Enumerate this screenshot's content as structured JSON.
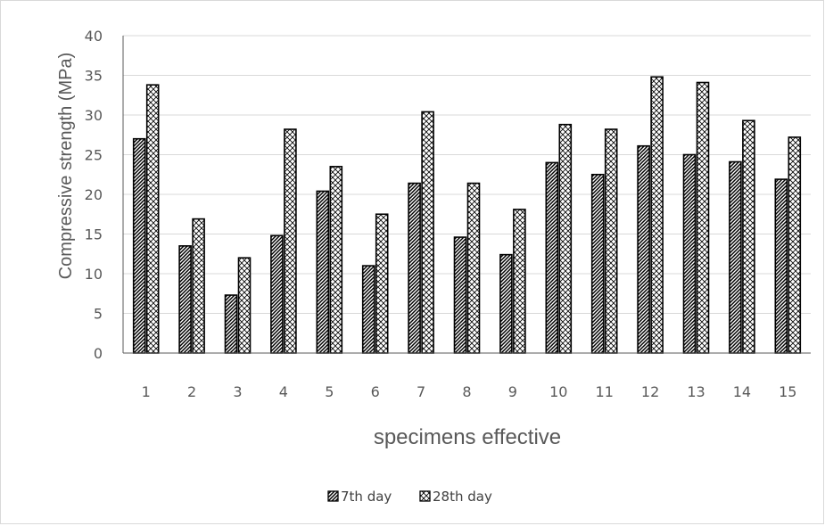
{
  "chart_data": {
    "type": "bar",
    "title": "",
    "xlabel": "specimens effective",
    "ylabel": "Compressive strength (MPa)",
    "ylim": [
      0,
      40
    ],
    "yticks": [
      0,
      5,
      10,
      15,
      20,
      25,
      30,
      35,
      40
    ],
    "grid": true,
    "legend_position": "bottom",
    "categories": [
      "1",
      "2",
      "3",
      "4",
      "5",
      "6",
      "7",
      "8",
      "9",
      "10",
      "11",
      "12",
      "13",
      "14",
      "15"
    ],
    "series": [
      {
        "name": "7th day",
        "pattern": "diagonal-stripes",
        "values": [
          27.0,
          13.5,
          7.3,
          14.8,
          20.4,
          11.0,
          21.4,
          14.6,
          12.4,
          24.0,
          22.5,
          26.1,
          25.0,
          24.1,
          21.9
        ]
      },
      {
        "name": "28th day",
        "pattern": "crosshatch",
        "values": [
          33.8,
          16.9,
          12.0,
          28.2,
          23.5,
          17.5,
          30.4,
          21.4,
          18.1,
          28.8,
          28.2,
          34.8,
          34.1,
          29.3,
          27.2
        ]
      }
    ]
  },
  "colors": {
    "grid": "#d9d9d9",
    "axis": "#595959",
    "bar_stroke": "#000000",
    "bar_fill": "#ffffff"
  }
}
